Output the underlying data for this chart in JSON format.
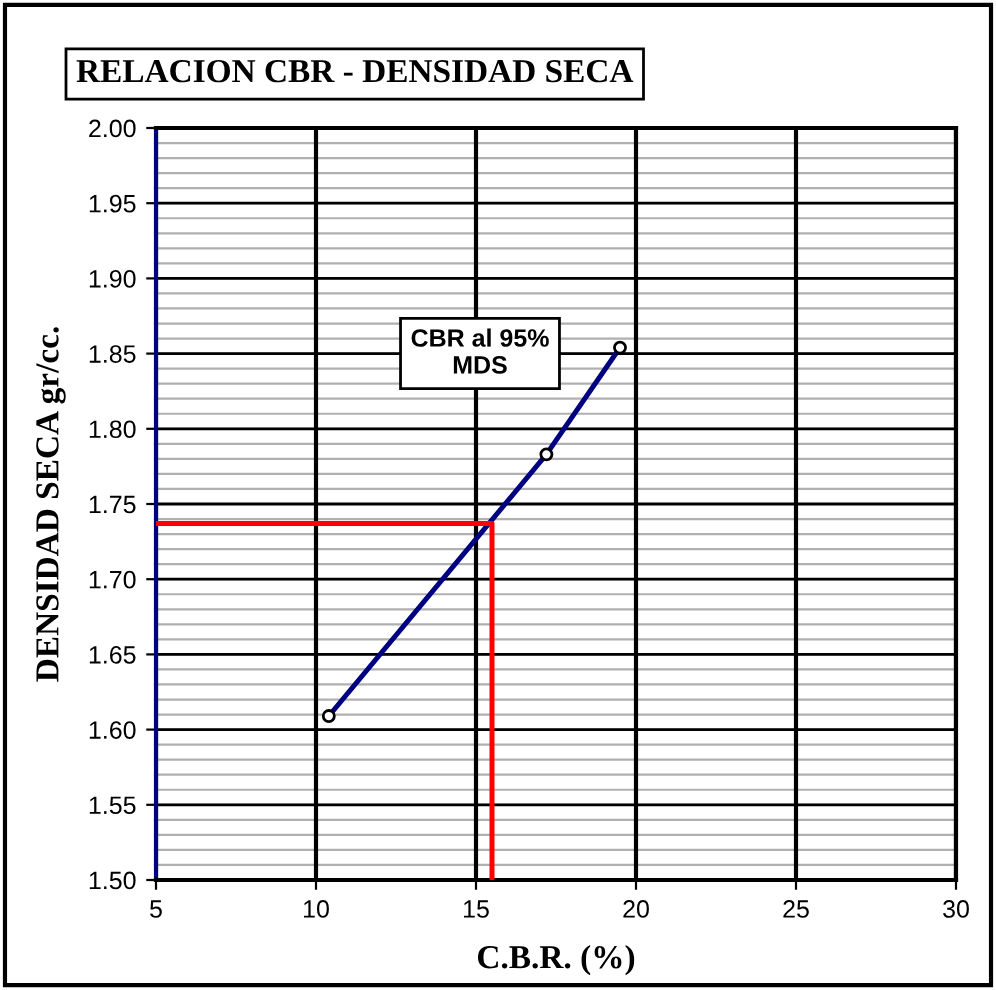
{
  "chart_data": {
    "type": "line",
    "title": "RELACION CBR - DENSIDAD SECA",
    "xlabel": "C.B.R. (%)",
    "ylabel": "DENSIDAD SECA gr/cc.",
    "annotations": [
      "CBR al 95%\nMDS"
    ],
    "series": [
      {
        "color": "#000080",
        "marker": "circle",
        "x": [
          10.4,
          17.2,
          19.5
        ],
        "values": [
          1.609,
          1.783,
          1.854
        ]
      },
      {
        "color": "#ff0000",
        "marker": "none",
        "x": [
          5,
          15.5,
          15.5
        ],
        "values": [
          1.737,
          1.737,
          1.5
        ]
      }
    ],
    "xlim": [
      5,
      30
    ],
    "xticks": [
      5,
      10,
      15,
      20,
      25,
      30
    ],
    "ylim": [
      1.5,
      2.0
    ],
    "yticks": [
      {
        "value": 1.5,
        "label": "1.50"
      },
      {
        "value": 1.55,
        "label": "1.55"
      },
      {
        "value": 1.6,
        "label": "1.60"
      },
      {
        "value": 1.65,
        "label": "1.65"
      },
      {
        "value": 1.7,
        "label": "1.70"
      },
      {
        "value": 1.75,
        "label": "1.75"
      },
      {
        "value": 1.8,
        "label": "1.80"
      },
      {
        "value": 1.85,
        "label": "1.85"
      },
      {
        "value": 1.9,
        "label": "1.90"
      },
      {
        "value": 1.95,
        "label": "1.95"
      },
      {
        "value": 2.0,
        "label": "2.00"
      }
    ],
    "grid": true
  }
}
